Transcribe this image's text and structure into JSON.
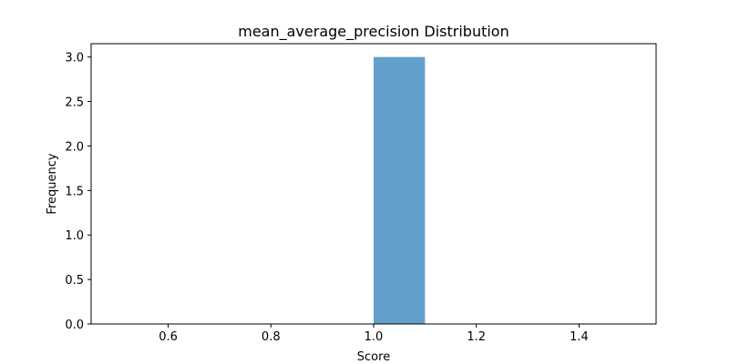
{
  "chart_data": {
    "type": "bar",
    "title": "mean_average_precision Distribution",
    "xlabel": "Score",
    "ylabel": "Frequency",
    "xlim": [
      0.45,
      1.55
    ],
    "ylim": [
      0,
      3.15
    ],
    "xticks": [
      0.6,
      0.8,
      1.0,
      1.2,
      1.4
    ],
    "xtick_labels": [
      "0.6",
      "0.8",
      "1.0",
      "1.2",
      "1.4"
    ],
    "yticks": [
      0,
      0.5,
      1.0,
      1.5,
      2.0,
      2.5,
      3.0
    ],
    "ytick_labels": [
      "0.0",
      "0.5",
      "1.0",
      "1.5",
      "2.0",
      "2.5",
      "3.0"
    ],
    "bins": [
      {
        "x0": 1.0,
        "x1": 1.1,
        "count": 3
      }
    ],
    "bar_color": "#629fca",
    "grid": false,
    "legend": "none"
  }
}
